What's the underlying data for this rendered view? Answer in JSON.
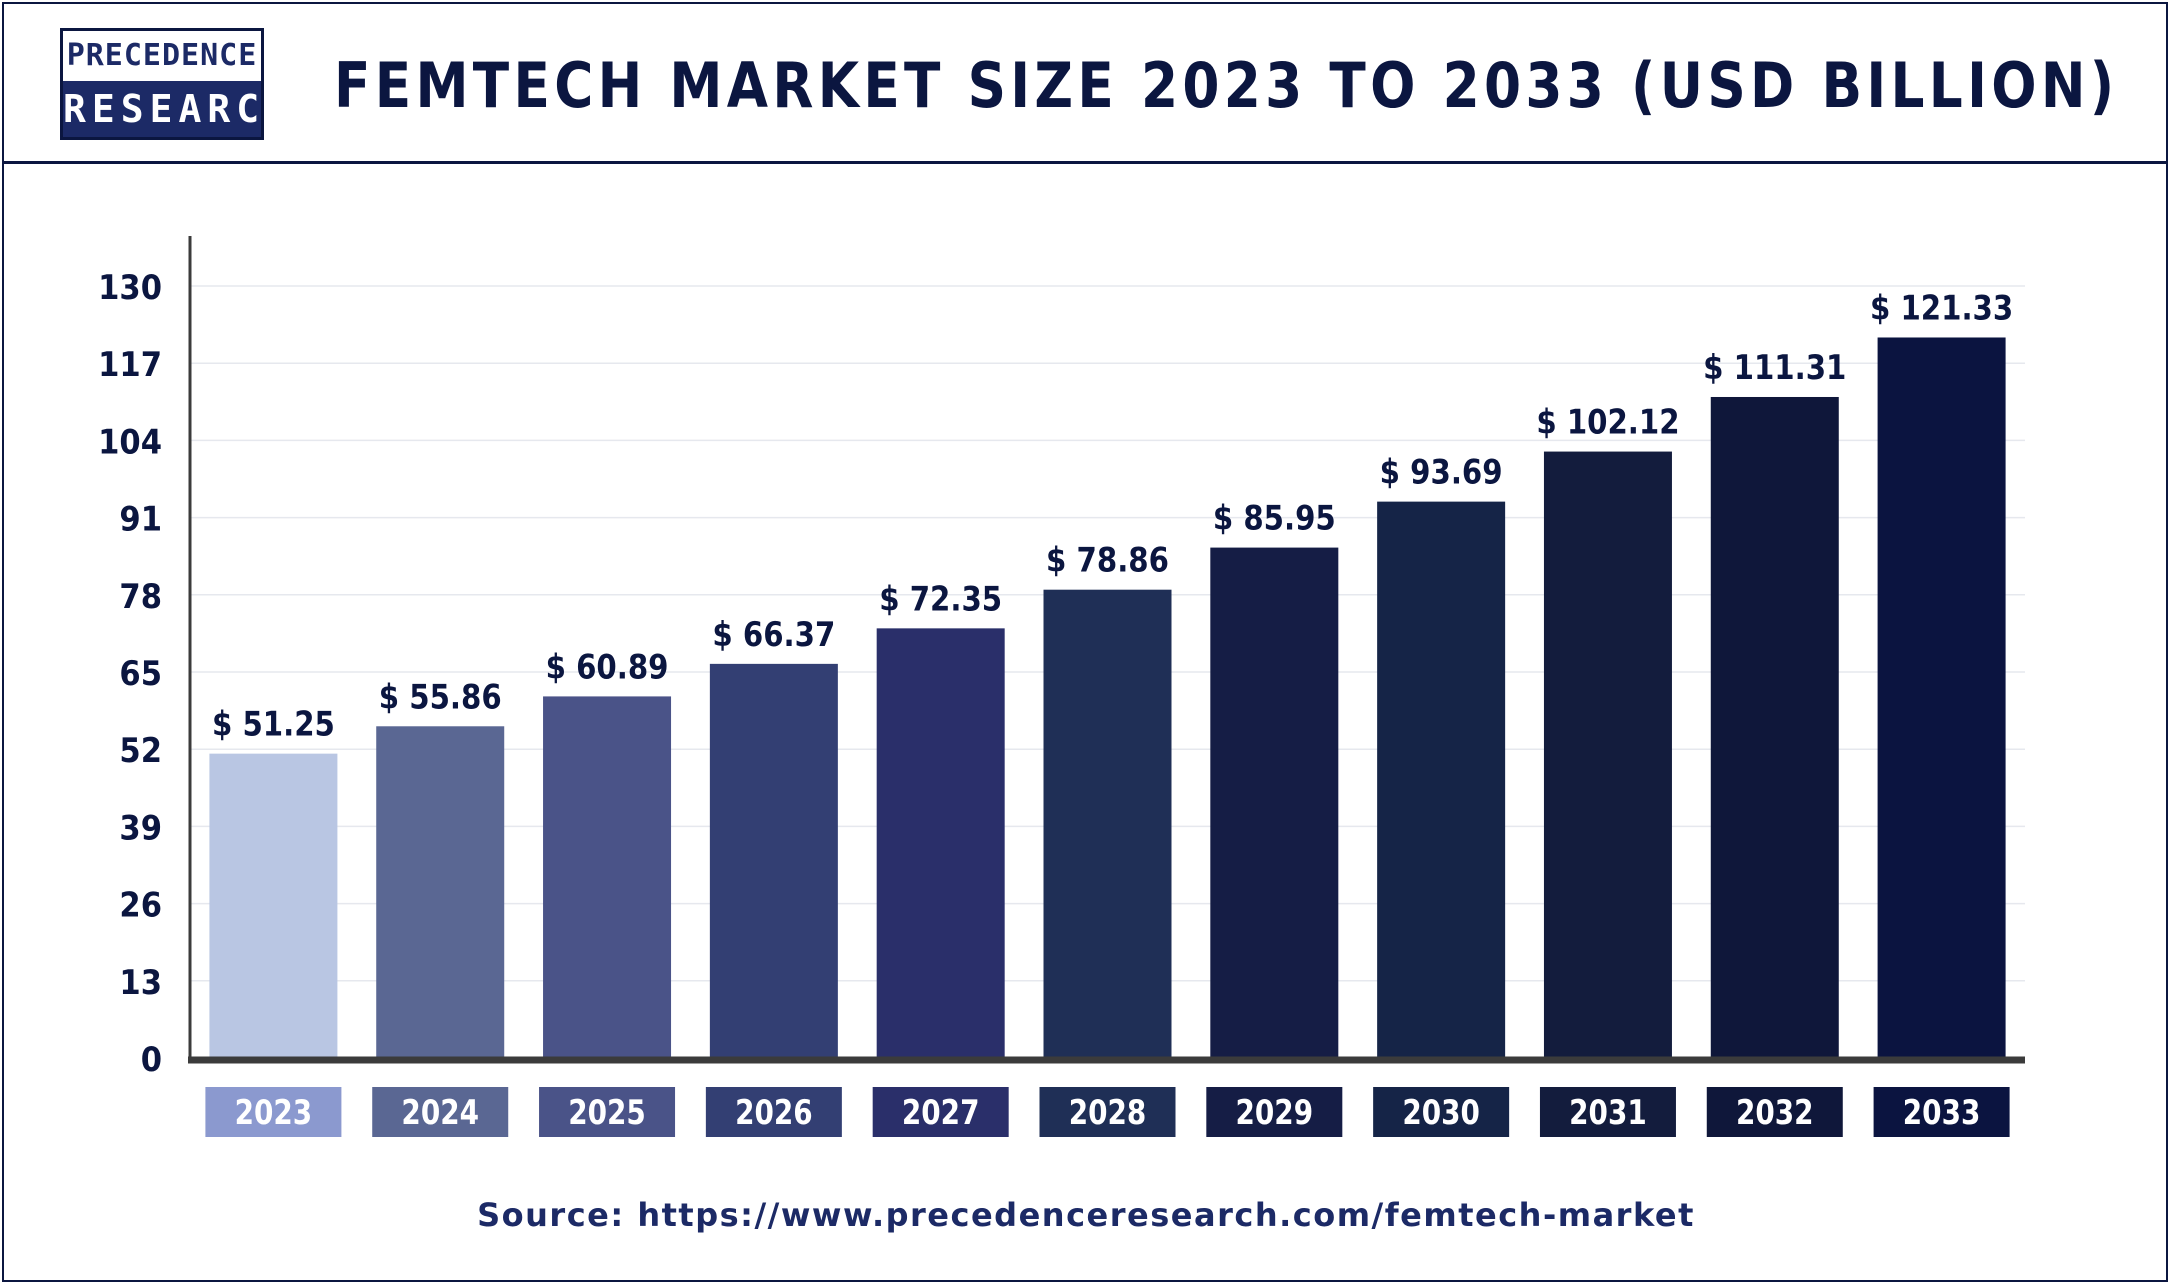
{
  "brand": {
    "logo_line1": "PRECEDENCE",
    "logo_line2": "RESEARCH"
  },
  "title": "FEMTECH MARKET SIZE 2023 TO 2033 (USD BILLION)",
  "source": "Source: https://www.precedenceresearch.com/femtech-market",
  "chart_data": {
    "type": "bar",
    "title": "FEMTECH MARKET SIZE 2023 TO 2033 (USD BILLION)",
    "xlabel": "",
    "ylabel": "",
    "categories": [
      "2023",
      "2024",
      "2025",
      "2026",
      "2027",
      "2028",
      "2029",
      "2030",
      "2031",
      "2032",
      "2033"
    ],
    "values": [
      51.25,
      55.86,
      60.89,
      66.37,
      72.35,
      78.86,
      85.95,
      93.69,
      102.12,
      111.31,
      121.33
    ],
    "value_labels": [
      "$ 51.25",
      "$ 55.86",
      "$ 60.89",
      "$ 66.37",
      "$ 72.35",
      "$ 78.86",
      "$ 85.95",
      "$ 93.69",
      "$ 102.12",
      "$ 111.31",
      "$ 121.33"
    ],
    "yticks": [
      0,
      13,
      26,
      39,
      52,
      65,
      78,
      91,
      104,
      117,
      130
    ],
    "ylim": [
      0,
      130
    ],
    "grid": true,
    "legend": "none",
    "bar_colors": [
      "#b9c6e3",
      "#5a6793",
      "#4a5388",
      "#333f73",
      "#2a2f6a",
      "#1f2f56",
      "#151d45",
      "#152447",
      "#131c3d",
      "#0f173a",
      "#0b1440"
    ],
    "label_box_colors": [
      "#8b99cf",
      "#5a6793",
      "#4a5388",
      "#333f73",
      "#2a2f6a",
      "#1f2f56",
      "#151d45",
      "#152447",
      "#131c3d",
      "#0f173a",
      "#0b1440"
    ],
    "axis_color": "#3b3b3b",
    "text_color": "#0b1640"
  }
}
